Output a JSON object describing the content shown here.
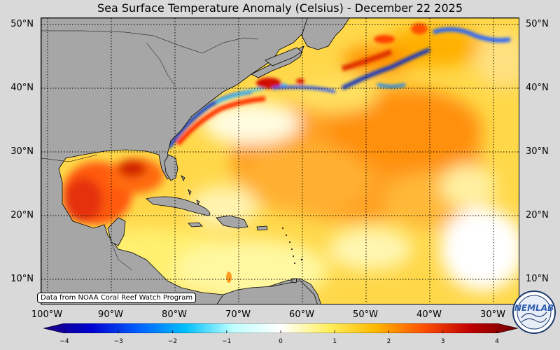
{
  "title": "Sea Surface Temperature Anomaly (Celsius) - December 22 2025",
  "credit": "Data from NOAA Coral Reef Watch Program",
  "logo_text": "NEMLAB",
  "lat_labels": [
    "50°N",
    "40°N",
    "30°N",
    "20°N",
    "10°N"
  ],
  "lon_labels": [
    "100°W",
    "90°W",
    "80°W",
    "70°W",
    "60°W",
    "50°W",
    "40°W",
    "30°W"
  ],
  "colorbar": {
    "ticks": [
      "−4",
      "−3",
      "−2",
      "−1",
      "0",
      "1",
      "2",
      "3",
      "4"
    ],
    "min": -4,
    "max": 4,
    "colors": [
      "#1a0080",
      "#0000d0",
      "#0060ff",
      "#00c0ff",
      "#c0ffff",
      "#ffffff",
      "#fff060",
      "#ffb800",
      "#ff5000",
      "#c00000",
      "#700000"
    ]
  }
}
